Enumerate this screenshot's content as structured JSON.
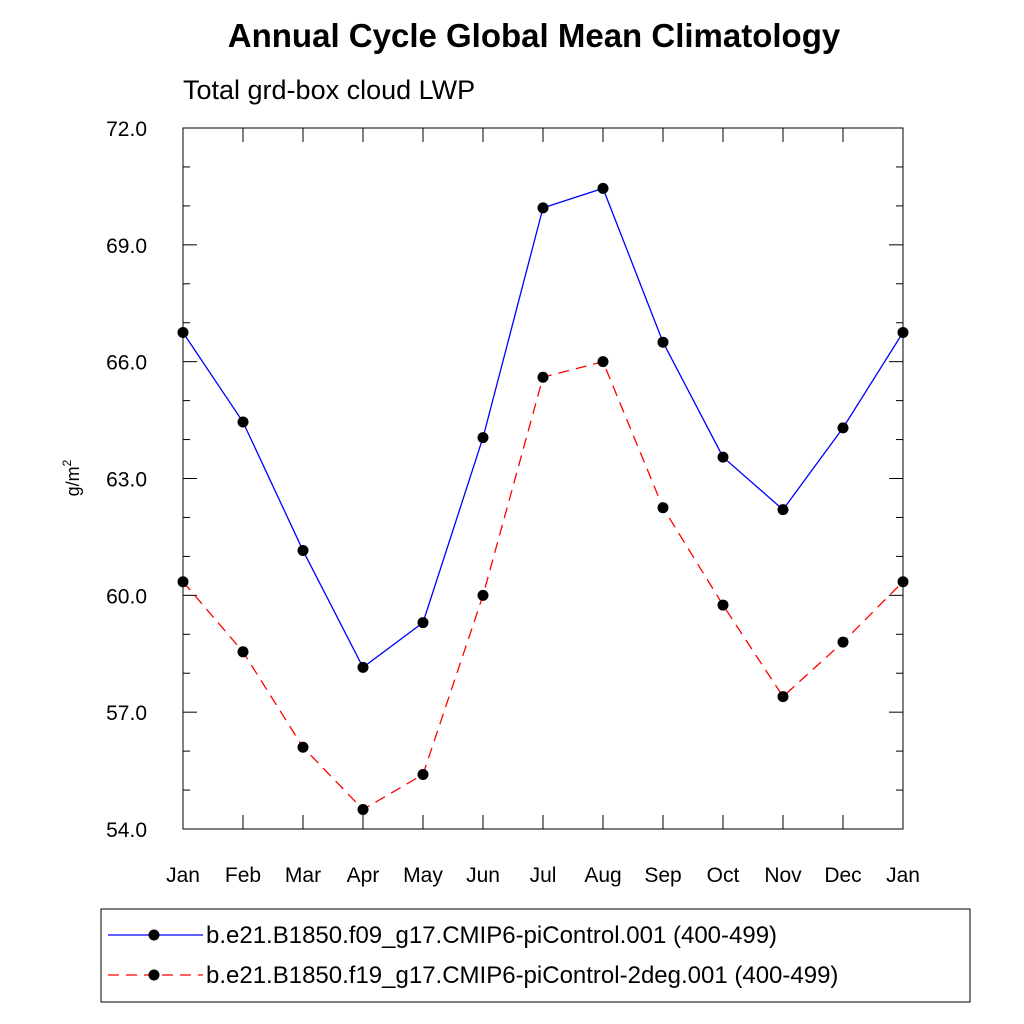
{
  "chart_data": {
    "type": "line",
    "title": "Annual Cycle Global Mean Climatology",
    "subtitle": "Total grd-box cloud LWP",
    "xlabel": "",
    "ylabel": "g/m",
    "ylabel_superscript": "2",
    "categories": [
      "Jan",
      "Feb",
      "Mar",
      "Apr",
      "May",
      "Jun",
      "Jul",
      "Aug",
      "Sep",
      "Oct",
      "Nov",
      "Dec",
      "Jan"
    ],
    "ylim": [
      54.0,
      72.0
    ],
    "yticks": [
      "54.0",
      "57.0",
      "60.0",
      "63.0",
      "66.0",
      "69.0",
      "72.0"
    ],
    "grid": false,
    "legend_position": "bottom",
    "series": [
      {
        "name": "b.e21.B1850.f09_g17.CMIP6-piControl.001 (400-499)",
        "color": "#0000ff",
        "line_style": "solid",
        "marker": "filled-circle",
        "values": [
          66.75,
          64.45,
          61.15,
          58.15,
          59.3,
          64.05,
          69.95,
          70.45,
          66.5,
          63.55,
          62.2,
          64.3,
          66.75
        ]
      },
      {
        "name": "b.e21.B1850.f19_g17.CMIP6-piControl-2deg.001 (400-499)",
        "color": "#ff0000",
        "line_style": "dashed",
        "marker": "filled-circle",
        "values": [
          60.35,
          58.55,
          56.1,
          54.5,
          55.4,
          60.0,
          65.6,
          66.0,
          62.25,
          59.75,
          57.4,
          58.8,
          60.35
        ]
      }
    ]
  }
}
